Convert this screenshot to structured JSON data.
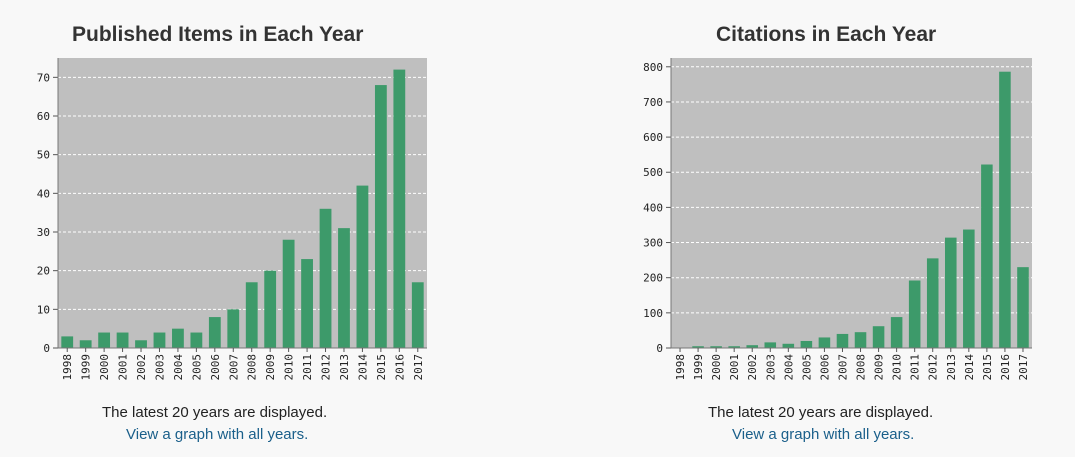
{
  "footer": {
    "latest_note": "The latest 20 years are displayed.",
    "all_years_link": "View a graph with all years."
  },
  "colors": {
    "bar": "#3d9a6a",
    "plot_bg": "#bfbfbf",
    "grid": "#ffffff"
  },
  "chart_data": [
    {
      "type": "bar",
      "title": "Published Items in Each Year",
      "categories": [
        "1998",
        "1999",
        "2000",
        "2001",
        "2002",
        "2003",
        "2004",
        "2005",
        "2006",
        "2007",
        "2008",
        "2009",
        "2010",
        "2011",
        "2012",
        "2013",
        "2014",
        "2015",
        "2016",
        "2017"
      ],
      "values": [
        3,
        2,
        4,
        4,
        2,
        4,
        5,
        4,
        8,
        10,
        17,
        20,
        28,
        23,
        36,
        31,
        42,
        68,
        72,
        17
      ],
      "yticks": [
        0,
        10,
        20,
        30,
        40,
        50,
        60,
        70
      ],
      "ylim": [
        0,
        75
      ],
      "grid": true
    },
    {
      "type": "bar",
      "title": "Citations in Each Year",
      "categories": [
        "1998",
        "1999",
        "2000",
        "2001",
        "2002",
        "2003",
        "2004",
        "2005",
        "2006",
        "2007",
        "2008",
        "2009",
        "2010",
        "2011",
        "2012",
        "2013",
        "2014",
        "2015",
        "2016",
        "2017"
      ],
      "values": [
        0,
        5,
        5,
        5,
        8,
        16,
        12,
        20,
        30,
        40,
        45,
        62,
        88,
        192,
        255,
        314,
        337,
        522,
        786,
        230
      ],
      "yticks": [
        0,
        100,
        200,
        300,
        400,
        500,
        600,
        700,
        800
      ],
      "ylim": [
        0,
        825
      ],
      "grid": true
    }
  ]
}
